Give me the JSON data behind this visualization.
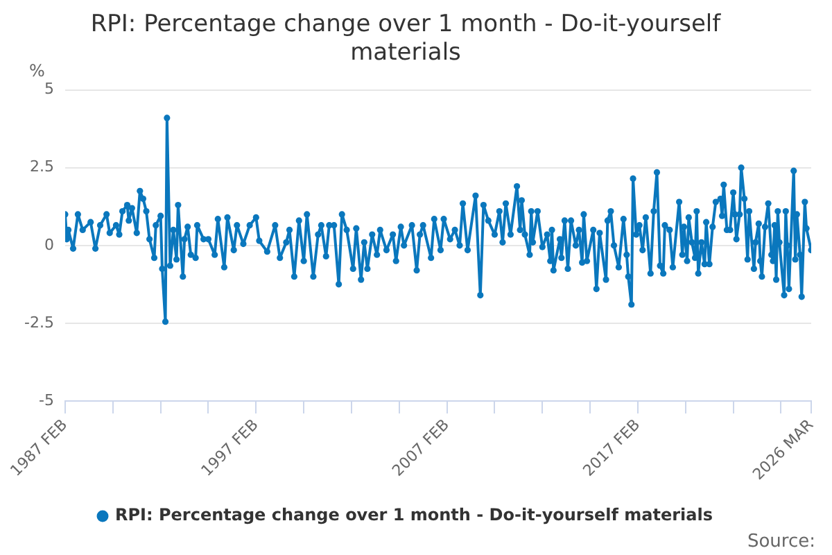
{
  "chart_data": {
    "type": "line",
    "title": "RPI: Percentage change over 1 month - Do-it-yourself materials",
    "ylabel": "%",
    "annotations": [
      "Source:"
    ],
    "x": [
      "1987-02",
      "1987-03",
      "1987-04",
      "1987-07",
      "1987-10",
      "1988-01",
      "1988-06",
      "1988-09",
      "1988-12",
      "1989-04",
      "1989-06",
      "1989-10",
      "1989-12",
      "1990-02",
      "1990-05",
      "1990-06",
      "1990-08",
      "1990-11",
      "1991-01",
      "1991-03",
      "1991-05",
      "1991-07",
      "1991-10",
      "1991-11",
      "1992-02",
      "1992-03",
      "1992-05",
      "1992-06",
      "1992-08",
      "1992-10",
      "1992-12",
      "1993-01",
      "1993-04",
      "1993-05",
      "1993-07",
      "1993-09",
      "1993-12",
      "1994-01",
      "1994-05",
      "1994-08",
      "1994-12",
      "1995-02",
      "1995-06",
      "1995-08",
      "1995-12",
      "1996-02",
      "1996-06",
      "1996-10",
      "1997-02",
      "1997-04",
      "1997-09",
      "1998-02",
      "1998-05",
      "1998-09",
      "1998-11",
      "1999-02",
      "1999-05",
      "1999-08",
      "1999-10",
      "2000-02",
      "2000-05",
      "2000-07",
      "2000-10",
      "2000-12",
      "2001-03",
      "2001-06",
      "2001-08",
      "2001-11",
      "2002-03",
      "2002-05",
      "2002-08",
      "2002-10",
      "2002-12",
      "2003-03",
      "2003-06",
      "2003-08",
      "2003-12",
      "2004-04",
      "2004-06",
      "2004-09",
      "2004-11",
      "2005-04",
      "2005-07",
      "2005-09",
      "2005-11",
      "2006-04",
      "2006-06",
      "2006-10",
      "2006-12",
      "2007-04",
      "2007-07",
      "2007-10",
      "2007-12",
      "2008-03",
      "2008-08",
      "2008-11",
      "2009-01",
      "2009-04",
      "2009-08",
      "2009-11",
      "2010-01",
      "2010-03",
      "2010-06",
      "2010-10",
      "2010-12",
      "2011-01",
      "2011-03",
      "2011-06",
      "2011-07",
      "2011-08",
      "2011-11",
      "2012-02",
      "2012-05",
      "2012-07",
      "2012-08",
      "2012-09",
      "2013-01",
      "2013-02",
      "2013-04",
      "2013-06",
      "2013-08",
      "2013-11",
      "2014-01",
      "2014-03",
      "2014-04",
      "2014-06",
      "2014-10",
      "2014-12",
      "2015-02",
      "2015-06",
      "2015-07",
      "2015-09",
      "2015-11",
      "2016-02",
      "2016-05",
      "2016-07",
      "2016-08",
      "2016-10",
      "2016-11",
      "2017-01",
      "2017-03",
      "2017-05",
      "2017-07",
      "2017-10",
      "2017-12",
      "2018-02",
      "2018-04",
      "2018-06",
      "2018-07",
      "2018-10",
      "2018-12",
      "2019-04",
      "2019-06",
      "2019-07",
      "2019-09",
      "2019-10",
      "2019-12",
      "2020-02",
      "2020-03",
      "2020-04",
      "2020-06",
      "2020-08",
      "2020-09",
      "2020-11",
      "2021-01",
      "2021-03",
      "2021-06",
      "2021-07",
      "2021-08",
      "2021-10",
      "2021-12",
      "2022-02",
      "2022-03",
      "2022-04",
      "2022-06",
      "2022-07",
      "2022-09",
      "2022-11",
      "2022-12",
      "2023-03",
      "2023-04",
      "2023-06",
      "2023-07",
      "2023-08",
      "2023-10",
      "2023-12",
      "2024-02",
      "2024-03",
      "2024-04",
      "2024-05",
      "2024-06",
      "2024-07",
      "2024-10",
      "2024-11",
      "2024-12",
      "2025-01",
      "2025-04",
      "2025-05",
      "2025-06",
      "2025-08",
      "2025-09",
      "2025-11",
      "2025-12",
      "2026-03"
    ],
    "series": [
      {
        "name": "RPI: Percentage change over 1 month - Do-it-yourself materials",
        "color": "#0a77bd",
        "values": [
          1.0,
          0.2,
          0.5,
          -0.1,
          1.0,
          0.5,
          0.75,
          -0.1,
          0.65,
          1.0,
          0.4,
          0.65,
          0.35,
          1.1,
          1.3,
          0.8,
          1.2,
          0.4,
          1.75,
          1.5,
          1.1,
          0.2,
          -0.4,
          0.65,
          0.95,
          -0.75,
          -2.45,
          4.1,
          -0.65,
          0.5,
          -0.45,
          1.3,
          -1.0,
          0.2,
          0.6,
          -0.3,
          -0.4,
          0.65,
          0.2,
          0.2,
          -0.3,
          0.85,
          -0.7,
          0.9,
          -0.15,
          0.65,
          0.05,
          0.65,
          0.9,
          0.15,
          -0.2,
          0.65,
          -0.4,
          0.1,
          0.5,
          -1.0,
          0.8,
          -0.5,
          1.0,
          -1.0,
          0.35,
          0.65,
          -0.35,
          0.65,
          0.65,
          -1.25,
          1.0,
          0.5,
          -0.75,
          0.55,
          -1.1,
          0.1,
          -0.75,
          0.35,
          -0.3,
          0.5,
          -0.15,
          0.35,
          -0.5,
          0.6,
          0.0,
          0.65,
          -0.8,
          0.35,
          0.65,
          -0.4,
          0.85,
          -0.15,
          0.85,
          0.2,
          0.5,
          0.0,
          1.35,
          -0.15,
          1.6,
          -1.6,
          1.3,
          0.8,
          0.35,
          1.1,
          0.1,
          1.35,
          0.35,
          1.9,
          0.5,
          1.45,
          0.35,
          -0.3,
          1.1,
          0.1,
          1.1,
          -0.05,
          0.35,
          -0.5,
          0.5,
          -0.8,
          0.2,
          -0.4,
          0.8,
          -0.75,
          0.8,
          0.0,
          0.5,
          -0.55,
          1.0,
          -0.5,
          0.5,
          -1.4,
          0.4,
          -1.1,
          0.8,
          1.1,
          0.0,
          -0.7,
          0.85,
          -0.3,
          -1.0,
          -1.9,
          2.15,
          0.35,
          0.65,
          -0.15,
          0.9,
          -0.9,
          1.1,
          2.35,
          -0.65,
          -0.9,
          0.65,
          0.5,
          -0.7,
          1.4,
          -0.3,
          0.6,
          -0.5,
          0.9,
          0.1,
          -0.4,
          1.1,
          -0.9,
          0.1,
          -0.6,
          0.75,
          -0.6,
          0.6,
          1.4,
          1.5,
          0.95,
          1.95,
          0.5,
          0.5,
          1.7,
          1.0,
          0.2,
          1.0,
          2.5,
          1.5,
          -0.45,
          1.1,
          -0.75,
          0.1,
          0.7,
          -0.5,
          -1.0,
          0.6,
          1.35,
          -0.3,
          -0.5,
          0.65,
          -1.1,
          1.1,
          0.1,
          -1.6,
          1.1,
          0.0,
          -1.4,
          2.4,
          -0.45,
          1.0,
          -0.3,
          -1.65,
          1.4,
          0.55,
          -0.15
        ]
      }
    ],
    "xlim": [
      "1987-02",
      "2026-03"
    ],
    "xticks": [
      {
        "value": "1987-02",
        "label": "1987 FEB"
      },
      {
        "value": "1989-08",
        "label": null
      },
      {
        "value": "1992-02",
        "label": null
      },
      {
        "value": "1994-08",
        "label": null
      },
      {
        "value": "1997-02",
        "label": "1997 FEB"
      },
      {
        "value": "1999-08",
        "label": null
      },
      {
        "value": "2002-02",
        "label": null
      },
      {
        "value": "2004-08",
        "label": null
      },
      {
        "value": "2007-02",
        "label": "2007 FEB"
      },
      {
        "value": "2009-08",
        "label": null
      },
      {
        "value": "2012-02",
        "label": null
      },
      {
        "value": "2014-08",
        "label": null
      },
      {
        "value": "2017-02",
        "label": "2017 FEB"
      },
      {
        "value": "2019-08",
        "label": null
      },
      {
        "value": "2022-02",
        "label": null
      },
      {
        "value": "2024-08",
        "label": null
      },
      {
        "value": "2026-03",
        "label": "2026 MAR"
      }
    ],
    "ylim": [
      -5,
      5
    ],
    "yticks": [
      -5,
      -2.5,
      0,
      2.5,
      5
    ],
    "grid": "y",
    "legend": "bottom",
    "marker": "circle"
  }
}
